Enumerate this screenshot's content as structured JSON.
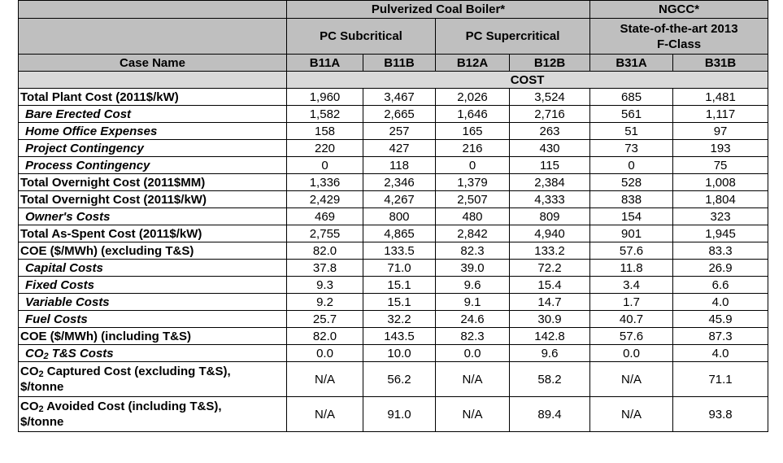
{
  "header": {
    "group_pc": "Pulverized Coal Boiler*",
    "group_ngcc": "NGCC*",
    "sub_subcritical": "PC Subcritical",
    "sub_supercritical": "PC Supercritical",
    "sub_ngcc_line1": "State-of-the-art 2013",
    "sub_ngcc_line2": "F-Class",
    "case_name": "Case Name",
    "cases": [
      "B11A",
      "B11B",
      "B12A",
      "B12B",
      "B31A",
      "B31B"
    ]
  },
  "section_title": "COST",
  "rows": [
    {
      "label": "Total Plant Cost (2011$/kW)",
      "values": [
        "1,960",
        "3,467",
        "2,026",
        "3,524",
        "685",
        "1,481"
      ]
    },
    {
      "label": "Bare Erected Cost",
      "values": [
        "1,582",
        "2,665",
        "1,646",
        "2,716",
        "561",
        "1,117"
      ]
    },
    {
      "label": "Home Office Expenses",
      "values": [
        "158",
        "257",
        "165",
        "263",
        "51",
        "97"
      ]
    },
    {
      "label": "Project Contingency",
      "values": [
        "220",
        "427",
        "216",
        "430",
        "73",
        "193"
      ]
    },
    {
      "label": "Process Contingency",
      "values": [
        "0",
        "118",
        "0",
        "115",
        "0",
        "75"
      ]
    },
    {
      "label": "Total Overnight Cost (2011$MM)",
      "values": [
        "1,336",
        "2,346",
        "1,379",
        "2,384",
        "528",
        "1,008"
      ]
    },
    {
      "label": "Total Overnight Cost (2011$/kW)",
      "values": [
        "2,429",
        "4,267",
        "2,507",
        "4,333",
        "838",
        "1,804"
      ]
    },
    {
      "label": "Owner's Costs",
      "values": [
        "469",
        "800",
        "480",
        "809",
        "154",
        "323"
      ]
    },
    {
      "label": "Total As-Spent Cost (2011$/kW)",
      "values": [
        "2,755",
        "4,865",
        "2,842",
        "4,940",
        "901",
        "1,945"
      ]
    },
    {
      "label": "COE ($/MWh) (excluding T&S)",
      "values": [
        "82.0",
        "133.5",
        "82.3",
        "133.2",
        "57.6",
        "83.3"
      ]
    },
    {
      "label": "Capital Costs",
      "values": [
        "37.8",
        "71.0",
        "39.0",
        "72.2",
        "11.8",
        "26.9"
      ]
    },
    {
      "label": "Fixed Costs",
      "values": [
        "9.3",
        "15.1",
        "9.6",
        "15.4",
        "3.4",
        "6.6"
      ]
    },
    {
      "label": "Variable Costs",
      "values": [
        "9.2",
        "15.1",
        "9.1",
        "14.7",
        "1.7",
        "4.0"
      ]
    },
    {
      "label": "Fuel Costs",
      "values": [
        "25.7",
        "32.2",
        "24.6",
        "30.9",
        "40.7",
        "45.9"
      ]
    },
    {
      "label": "COE ($/MWh) (including T&S)",
      "values": [
        "82.0",
        "143.5",
        "82.3",
        "142.8",
        "57.6",
        "87.3"
      ]
    },
    {
      "label_pre": "CO",
      "label_sub": "2",
      "label_post": " T&S Costs",
      "values": [
        "0.0",
        "10.0",
        "0.0",
        "9.6",
        "0.0",
        "4.0"
      ]
    },
    {
      "label_pre": "CO",
      "label_sub": "2",
      "label_post": " Captured Cost (excluding T&S),",
      "label_line2": "$/tonne",
      "values": [
        "N/A",
        "56.2",
        "N/A",
        "58.2",
        "N/A",
        "71.1"
      ]
    },
    {
      "label_pre": "CO",
      "label_sub": "2",
      "label_post": " Avoided Cost (including T&S),",
      "label_line2": "$/tonne",
      "values": [
        "N/A",
        "91.0",
        "N/A",
        "89.4",
        "N/A",
        "93.8"
      ]
    }
  ]
}
